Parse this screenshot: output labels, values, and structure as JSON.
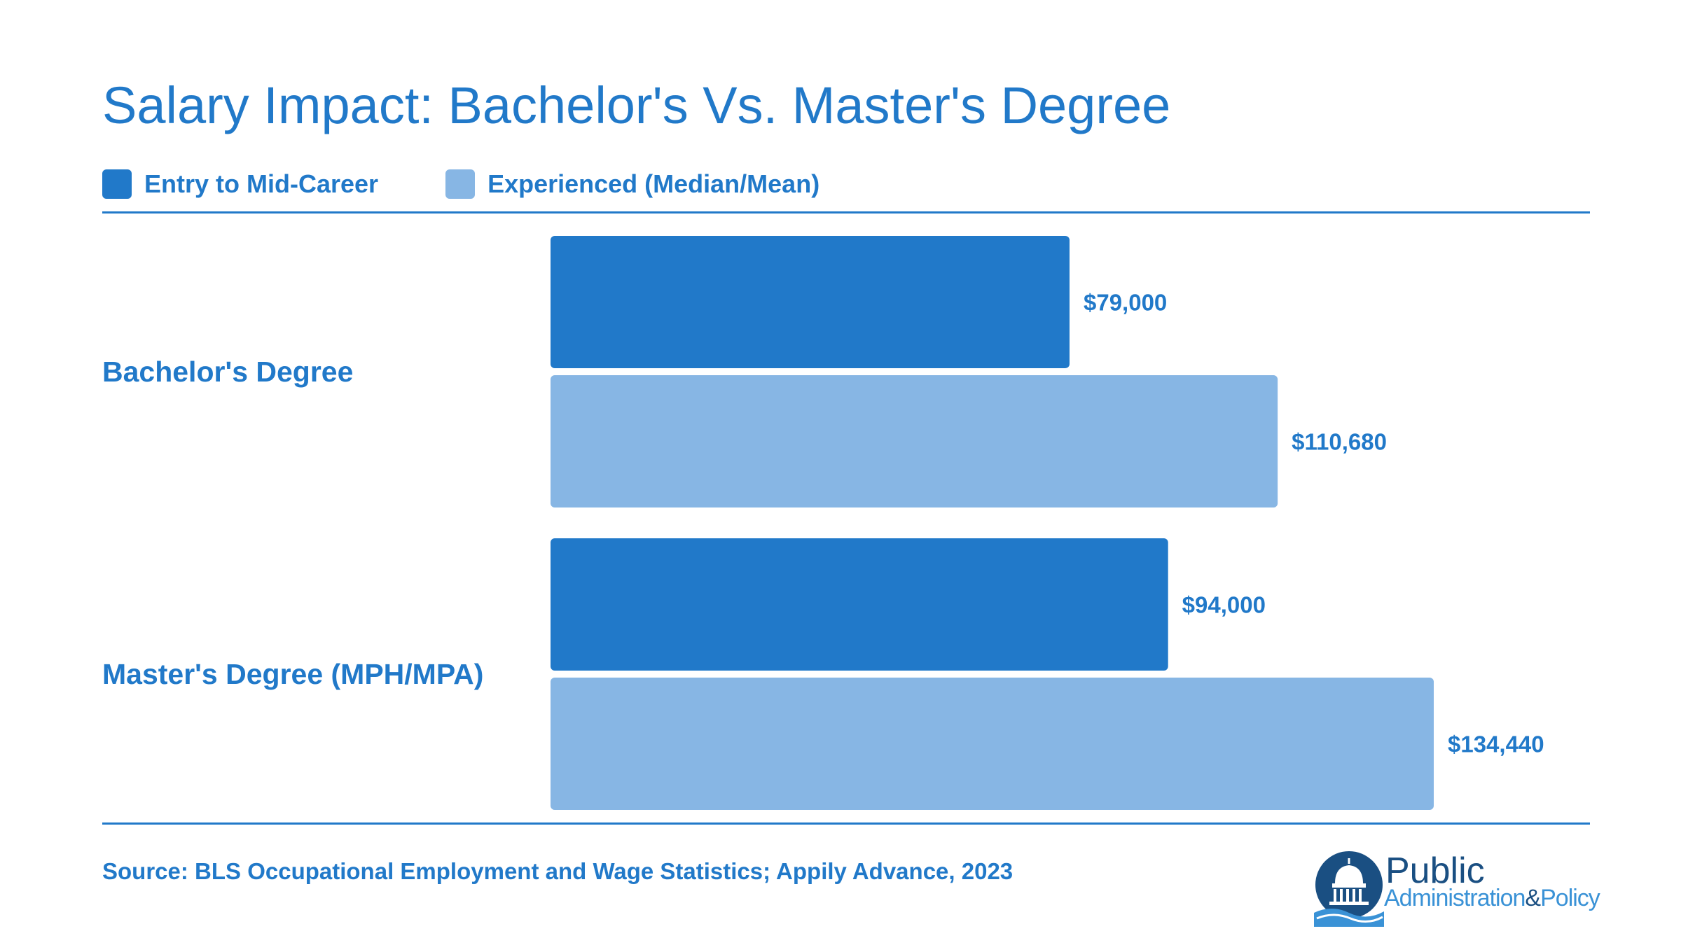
{
  "title": "Salary Impact: Bachelor's Vs. Master's Degree",
  "legend": [
    {
      "label": "Entry to Mid-Career",
      "color": "#2179c9"
    },
    {
      "label": "Experienced (Median/Mean)",
      "color": "#87b6e4"
    }
  ],
  "source": "Source: BLS Occupational Employment and Wage Statistics; Appily Advance, 2023",
  "logo": {
    "line1": "Public",
    "line2_a": "Administration",
    "line2_amp": "&",
    "line2_b": "Policy",
    "icon": "capitol-dome-icon"
  },
  "chart_data": {
    "type": "bar",
    "orientation": "horizontal",
    "categories": [
      "Bachelor's Degree",
      "Master's Degree (MPH/MPA)"
    ],
    "series": [
      {
        "name": "Entry to Mid-Career",
        "values": [
          79000,
          94000
        ],
        "labels": [
          "$79,000",
          "$94,000"
        ],
        "color": "#2179c9"
      },
      {
        "name": "Experienced (Median/Mean)",
        "values": [
          110680,
          134440
        ],
        "labels": [
          "$110,680",
          "$134,440"
        ],
        "color": "#87b6e4"
      }
    ],
    "xlim": [
      0,
      134440
    ],
    "grid": false,
    "legend_position": "top-left"
  }
}
